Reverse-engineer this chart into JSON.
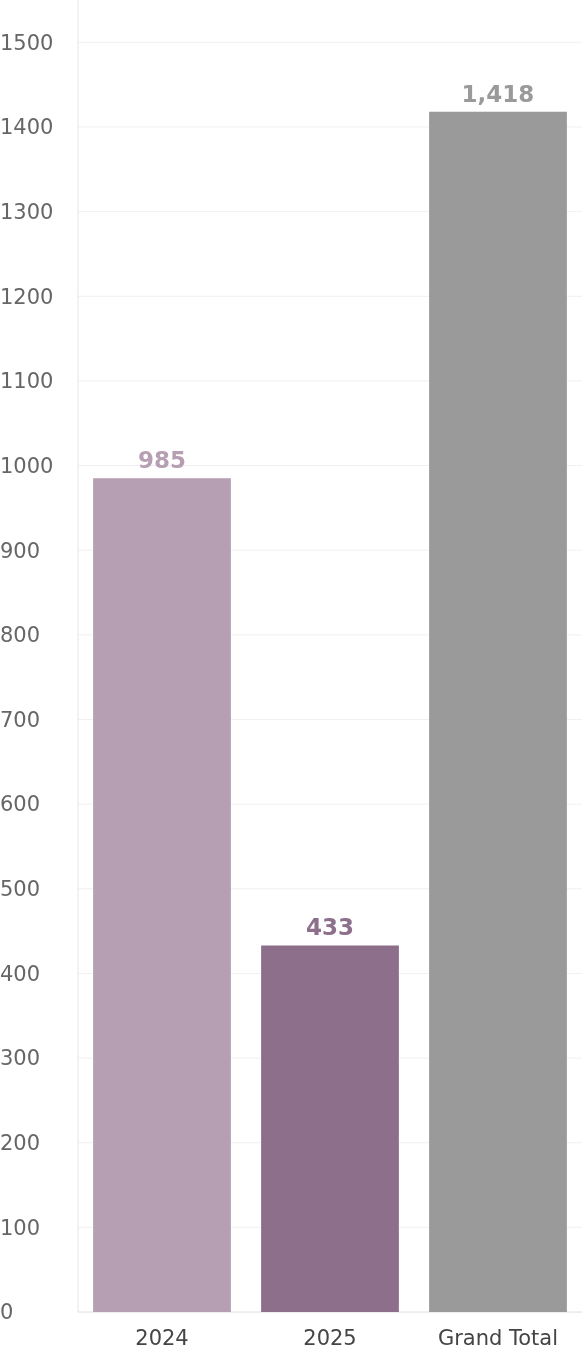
{
  "chart_data": {
    "type": "bar",
    "categories": [
      "2024",
      "2025",
      "Grand Total"
    ],
    "values": [
      985,
      433,
      1418
    ],
    "colors": [
      "#b79fb3",
      "#8d6f8c",
      "#9a9a9a"
    ],
    "value_labels": [
      "985",
      "433",
      "1,418"
    ],
    "ylim": [
      0,
      1550
    ],
    "yticks": [
      0,
      100,
      200,
      300,
      400,
      500,
      600,
      700,
      800,
      900,
      1000,
      1100,
      1200,
      1300,
      1400,
      1500
    ],
    "grid": "y"
  }
}
